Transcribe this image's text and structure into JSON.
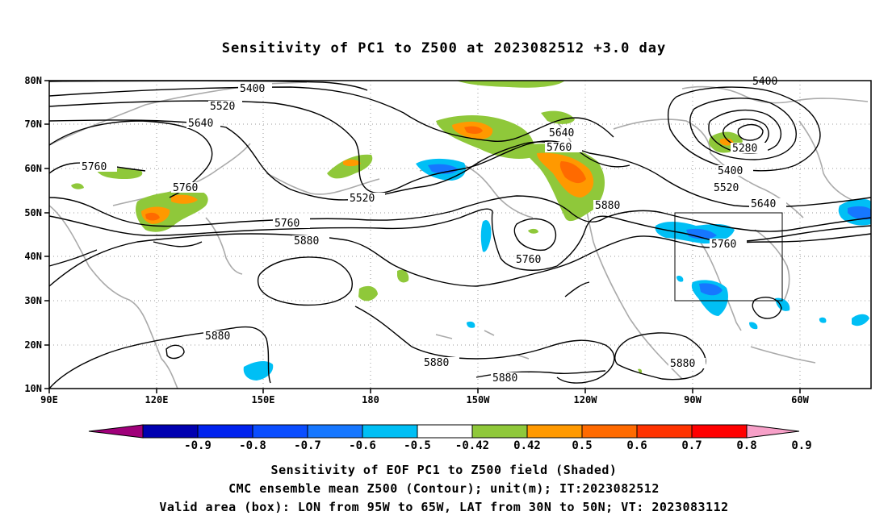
{
  "title": "Sensitivity of PC1 to Z500 at 2023082512 +3.0 day",
  "axes": {
    "lat_labels": [
      "80N",
      "70N",
      "60N",
      "50N",
      "40N",
      "30N",
      "20N",
      "10N"
    ],
    "lon_labels": [
      "90E",
      "120E",
      "150E",
      "180",
      "150W",
      "120W",
      "90W",
      "60W"
    ]
  },
  "contour_labels": [
    "5400",
    "5520",
    "5640",
    "5760",
    "5760",
    "5760",
    "5520",
    "5880",
    "5760",
    "5880",
    "5880",
    "5880",
    "5880",
    "5640",
    "5760",
    "5880",
    "5400",
    "5280",
    "5400",
    "5520",
    "5640",
    "5760"
  ],
  "colorbar": {
    "labels": [
      "-0.9",
      "-0.8",
      "-0.7",
      "-0.6",
      "-0.5",
      "-0.42",
      "0.42",
      "0.5",
      "0.6",
      "0.7",
      "0.8",
      "0.9"
    ],
    "colors": [
      "#a0007a",
      "#0000b0",
      "#0022ee",
      "#0a4dff",
      "#1677ff",
      "#00bff5",
      "#ffffff",
      "#8fc83a",
      "#ff9900",
      "#ff6a00",
      "#ff3300",
      "#ff0000",
      "#f7a0c8"
    ]
  },
  "valid_box": {
    "lon_from": "95W",
    "lon_to": "65W",
    "lat_from": "30N",
    "lat_to": "50N"
  },
  "captions": {
    "line1": "Sensitivity of EOF PC1 to Z500 field (Shaded)",
    "line2": "CMC ensemble mean Z500 (Contour); unit(m); IT:2023082512",
    "line3": "Valid area (box): LON from 95W to 65W, LAT from 30N to 50N; VT: 2023083112"
  }
}
